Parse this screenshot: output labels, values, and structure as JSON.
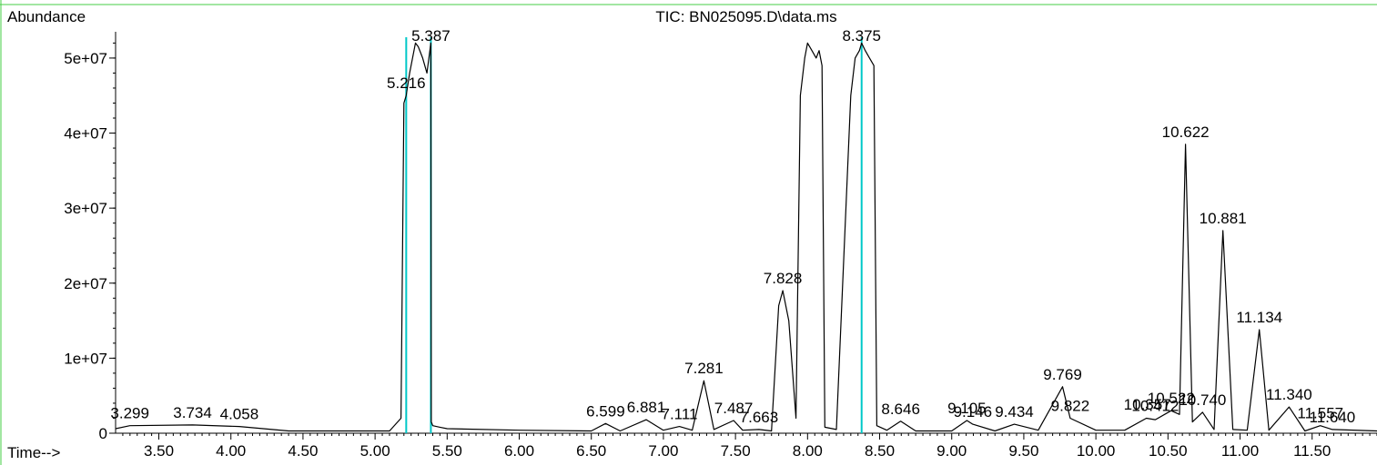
{
  "chart_data": {
    "type": "line",
    "title": "TIC: BN025095.D\\data.ms",
    "ylabel": "Abundance",
    "xlabel": "Time-->",
    "xlim": [
      3.2,
      11.95
    ],
    "ylim": [
      0,
      53500000
    ],
    "x_ticks": [
      3.5,
      4.0,
      4.5,
      5.0,
      5.5,
      6.0,
      6.5,
      7.0,
      7.5,
      8.0,
      8.5,
      9.0,
      9.5,
      10.0,
      10.5,
      11.0,
      11.5
    ],
    "x_tick_labels": [
      "3.50",
      "4.00",
      "4.50",
      "5.00",
      "5.50",
      "6.00",
      "6.50",
      "7.00",
      "7.50",
      "8.00",
      "8.50",
      "9.00",
      "9.50",
      "10.00",
      "10.50",
      "11.00",
      "11.50"
    ],
    "y_ticks": [
      0,
      10000000,
      20000000,
      30000000,
      40000000,
      50000000
    ],
    "y_tick_labels": [
      "0",
      "1e+07",
      "2e+07",
      "3e+07",
      "4e+07",
      "5e+07"
    ],
    "line_color": "#000000",
    "marker_color": "#00c8c8",
    "frame_color": "#44cc44",
    "series": [
      {
        "x": [
          3.2,
          3.299,
          3.734,
          4.058,
          4.4,
          5.1,
          5.18,
          5.2,
          5.216,
          5.24,
          5.26,
          5.28,
          5.3,
          5.33,
          5.36,
          5.387,
          5.39,
          5.4,
          5.45,
          5.5,
          6.0,
          6.5,
          6.599,
          6.7,
          6.881,
          7.0,
          7.111,
          7.2,
          7.281,
          7.35,
          7.487,
          7.55,
          7.663,
          7.75,
          7.8,
          7.828,
          7.87,
          7.92,
          7.95,
          7.98,
          8.0,
          8.03,
          8.06,
          8.08,
          8.1,
          8.12,
          8.2,
          8.3,
          8.33,
          8.36,
          8.375,
          8.4,
          8.43,
          8.46,
          8.48,
          8.55,
          8.646,
          8.75,
          9.0,
          9.105,
          9.146,
          9.3,
          9.434,
          9.6,
          9.769,
          9.822,
          10.0,
          10.2,
          10.35,
          10.412,
          10.522,
          10.58,
          10.622,
          10.67,
          10.74,
          10.82,
          10.881,
          10.95,
          11.05,
          11.134,
          11.2,
          11.34,
          11.45,
          11.557,
          11.64,
          11.95
        ],
        "y": [
          600000,
          1000000,
          1100000,
          900000,
          300000,
          300000,
          2000000,
          44000000,
          45000000,
          48000000,
          50000000,
          52000000,
          51500000,
          50000000,
          48000000,
          52000000,
          1500000,
          1000000,
          800000,
          600000,
          400000,
          300000,
          1300000,
          300000,
          1800000,
          400000,
          900000,
          400000,
          7000000,
          500000,
          1700000,
          400000,
          500000,
          300000,
          17000000,
          19000000,
          15000000,
          2000000,
          45000000,
          50000000,
          52000000,
          51000000,
          50000000,
          51000000,
          49000000,
          800000,
          500000,
          45000000,
          50000000,
          51000000,
          52000000,
          51000000,
          50000000,
          49000000,
          1000000,
          400000,
          1600000,
          300000,
          300000,
          1700000,
          1200000,
          300000,
          1200000,
          400000,
          6200000,
          2000000,
          400000,
          400000,
          2000000,
          1800000,
          3000000,
          2500000,
          38500000,
          1500000,
          2800000,
          500000,
          27000000,
          500000,
          400000,
          13800000,
          400000,
          3500000,
          300000,
          1000000,
          500000,
          300000
        ]
      }
    ],
    "peak_labels": [
      {
        "x": 3.299,
        "y": 1000000,
        "text": "3.299"
      },
      {
        "x": 3.734,
        "y": 1100000,
        "text": "3.734"
      },
      {
        "x": 4.058,
        "y": 900000,
        "text": "4.058"
      },
      {
        "x": 5.216,
        "y": 45000000,
        "text": "5.216"
      },
      {
        "x": 5.387,
        "y": 52000000,
        "text": "5.387"
      },
      {
        "x": 6.599,
        "y": 1300000,
        "text": "6.599"
      },
      {
        "x": 6.881,
        "y": 1800000,
        "text": "6.881"
      },
      {
        "x": 7.111,
        "y": 900000,
        "text": "7.111"
      },
      {
        "x": 7.281,
        "y": 7000000,
        "text": "7.281"
      },
      {
        "x": 7.487,
        "y": 1700000,
        "text": "7.487"
      },
      {
        "x": 7.663,
        "y": 500000,
        "text": "7.663"
      },
      {
        "x": 7.828,
        "y": 19000000,
        "text": "7.828"
      },
      {
        "x": 8.375,
        "y": 52000000,
        "text": "8.375"
      },
      {
        "x": 8.646,
        "y": 1600000,
        "text": "8.646"
      },
      {
        "x": 9.105,
        "y": 1700000,
        "text": "9.105"
      },
      {
        "x": 9.146,
        "y": 1200000,
        "text": "9.146"
      },
      {
        "x": 9.434,
        "y": 1200000,
        "text": "9.434"
      },
      {
        "x": 9.769,
        "y": 6200000,
        "text": "9.769"
      },
      {
        "x": 9.822,
        "y": 2000000,
        "text": "9.822"
      },
      {
        "x": 10.357,
        "y": 2200000,
        "text": "10.357"
      },
      {
        "x": 10.412,
        "y": 2000000,
        "text": "10.412"
      },
      {
        "x": 10.522,
        "y": 3000000,
        "text": "10.522"
      },
      {
        "x": 10.622,
        "y": 38500000,
        "text": "10.622"
      },
      {
        "x": 10.74,
        "y": 2800000,
        "text": "10.740"
      },
      {
        "x": 10.881,
        "y": 27000000,
        "text": "10.881"
      },
      {
        "x": 11.134,
        "y": 13800000,
        "text": "11.134"
      },
      {
        "x": 11.34,
        "y": 3500000,
        "text": "11.340"
      },
      {
        "x": 11.557,
        "y": 1000000,
        "text": "11.557"
      },
      {
        "x": 11.64,
        "y": 500000,
        "text": "11.640"
      }
    ],
    "markers": [
      5.216,
      5.387,
      8.375
    ]
  }
}
